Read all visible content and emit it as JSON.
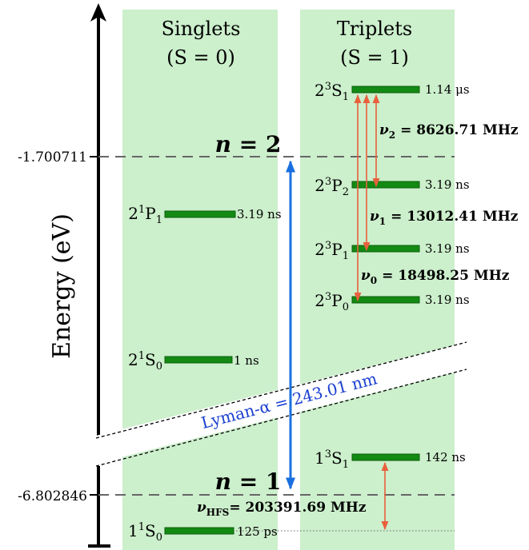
{
  "axis": {
    "label": "Energy (eV)",
    "tick_top": "-1.700711",
    "tick_bottom": "-6.802846"
  },
  "columns": {
    "singlets": {
      "title": "Singlets",
      "subtitle": "(S = 0)"
    },
    "triplets": {
      "title": "Triplets",
      "subtitle": "(S = 1)"
    }
  },
  "levels": {
    "s_2_1P1": {
      "n": "2",
      "mult": "1",
      "L": "P",
      "J": "1",
      "lifetime": "3.19 ns"
    },
    "s_2_1S0": {
      "n": "2",
      "mult": "1",
      "L": "S",
      "J": "0",
      "lifetime": "1 ns"
    },
    "s_1_1S0": {
      "n": "1",
      "mult": "1",
      "L": "S",
      "J": "0",
      "lifetime": "125 ps"
    },
    "t_2_3S1": {
      "n": "2",
      "mult": "3",
      "L": "S",
      "J": "1",
      "lifetime": "1.14 μs"
    },
    "t_2_3P2": {
      "n": "2",
      "mult": "3",
      "L": "P",
      "J": "2",
      "lifetime": "3.19 ns"
    },
    "t_2_3P1": {
      "n": "2",
      "mult": "3",
      "L": "P",
      "J": "1",
      "lifetime": "3.19 ns"
    },
    "t_2_3P0": {
      "n": "2",
      "mult": "3",
      "L": "P",
      "J": "0",
      "lifetime": "3.19 ns"
    },
    "t_1_3S1": {
      "n": "1",
      "mult": "3",
      "L": "S",
      "J": "1",
      "lifetime": "142 ns"
    }
  },
  "shells": {
    "n2": {
      "sym": "n",
      "eq": " = 2"
    },
    "n1": {
      "sym": "n",
      "eq": " = 1"
    }
  },
  "frequencies": {
    "nu2": {
      "sym": "ν",
      "sub": "2",
      "value": " = 8626.71 MHz"
    },
    "nu1": {
      "sym": "ν",
      "sub": "1",
      "value": " = 13012.41 MHz"
    },
    "nu0": {
      "sym": "ν",
      "sub": "0",
      "value": " = 18498.25 MHz"
    },
    "nuhfs": {
      "sym": "ν",
      "sub": "HFS",
      "value": "= 203391.69 MHz"
    }
  },
  "lyman": {
    "text": "Lyman-α = 243.01 nm"
  },
  "colors": {
    "panel": "#ccefcc",
    "level": "#138a13",
    "level_border": "#0b5e0b",
    "arrow_red": "#e8603c",
    "arrow_blue": "#1a6fe0",
    "lyman_text": "#1a3fcf"
  }
}
